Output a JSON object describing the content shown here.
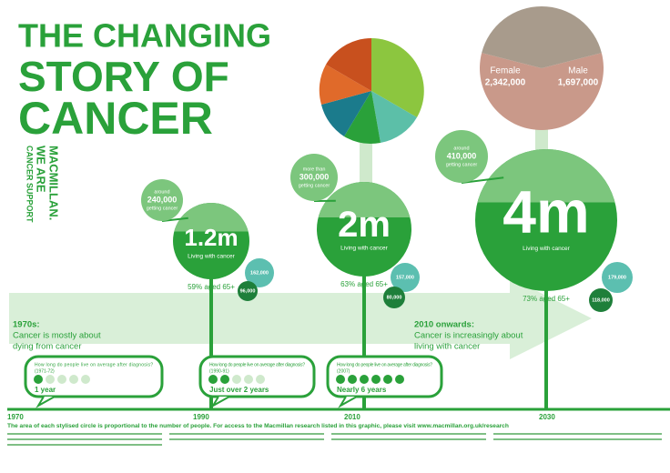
{
  "title_lines": [
    "THE CHANGING",
    "STORY OF",
    "CANCER"
  ],
  "brand": [
    "WE ARE",
    "MACMILLAN.",
    "CANCER SUPPORT"
  ],
  "start_year": "1970",
  "milestones": [
    {
      "year": "1990",
      "living": "1.2m",
      "living_label": "Living with cancer",
      "aged": "59% aged 65+",
      "incidence": [
        "around",
        "240,000",
        "getting cancer"
      ],
      "small": [
        "162,000",
        "96,000"
      ]
    },
    {
      "year": "2010",
      "living": "2m",
      "living_label": "Living with cancer",
      "aged": "63% aged 65+",
      "incidence": [
        "more than",
        "300,000",
        "getting cancer"
      ],
      "small": [
        "157,000",
        "80,000"
      ]
    },
    {
      "year": "2030",
      "living": "4m",
      "living_label": "Living with cancer",
      "aged": "73% aged 65+",
      "incidence": [
        "around",
        "410,000",
        "getting cancer"
      ],
      "small": [
        "179,000",
        "118,000"
      ]
    }
  ],
  "survival": [
    {
      "question": "How long do people live on average after diagnosis?",
      "period": "(1971-72)",
      "answer": "1 year"
    },
    {
      "question": "How long do people live on average after diagnosis?",
      "period": "(1990-91)",
      "answer": "Just over 2 years"
    },
    {
      "question": "How long do people live on average after diagnosis?",
      "period": "(2007)",
      "answer": "Nearly 6 years"
    }
  ],
  "arrow": {
    "past": [
      "1970s:",
      "Cancer is mostly about",
      "dying from cancer"
    ],
    "future": [
      "2010 onwards:",
      "Cancer is increasingly about",
      "living with cancer"
    ]
  },
  "gender": [
    {
      "label": "Female",
      "value": 2342000,
      "value_label": "2,342,000",
      "color": "#c9998a"
    },
    {
      "label": "Male",
      "value": 1697000,
      "value_label": "1,697,000",
      "color": "#a89b8c"
    }
  ],
  "footer": "The area of each stylised circle is proportional to the number of people. For access to the Macmillan research listed in this graphic, please visit www.macmillan.org.uk/research"
}
